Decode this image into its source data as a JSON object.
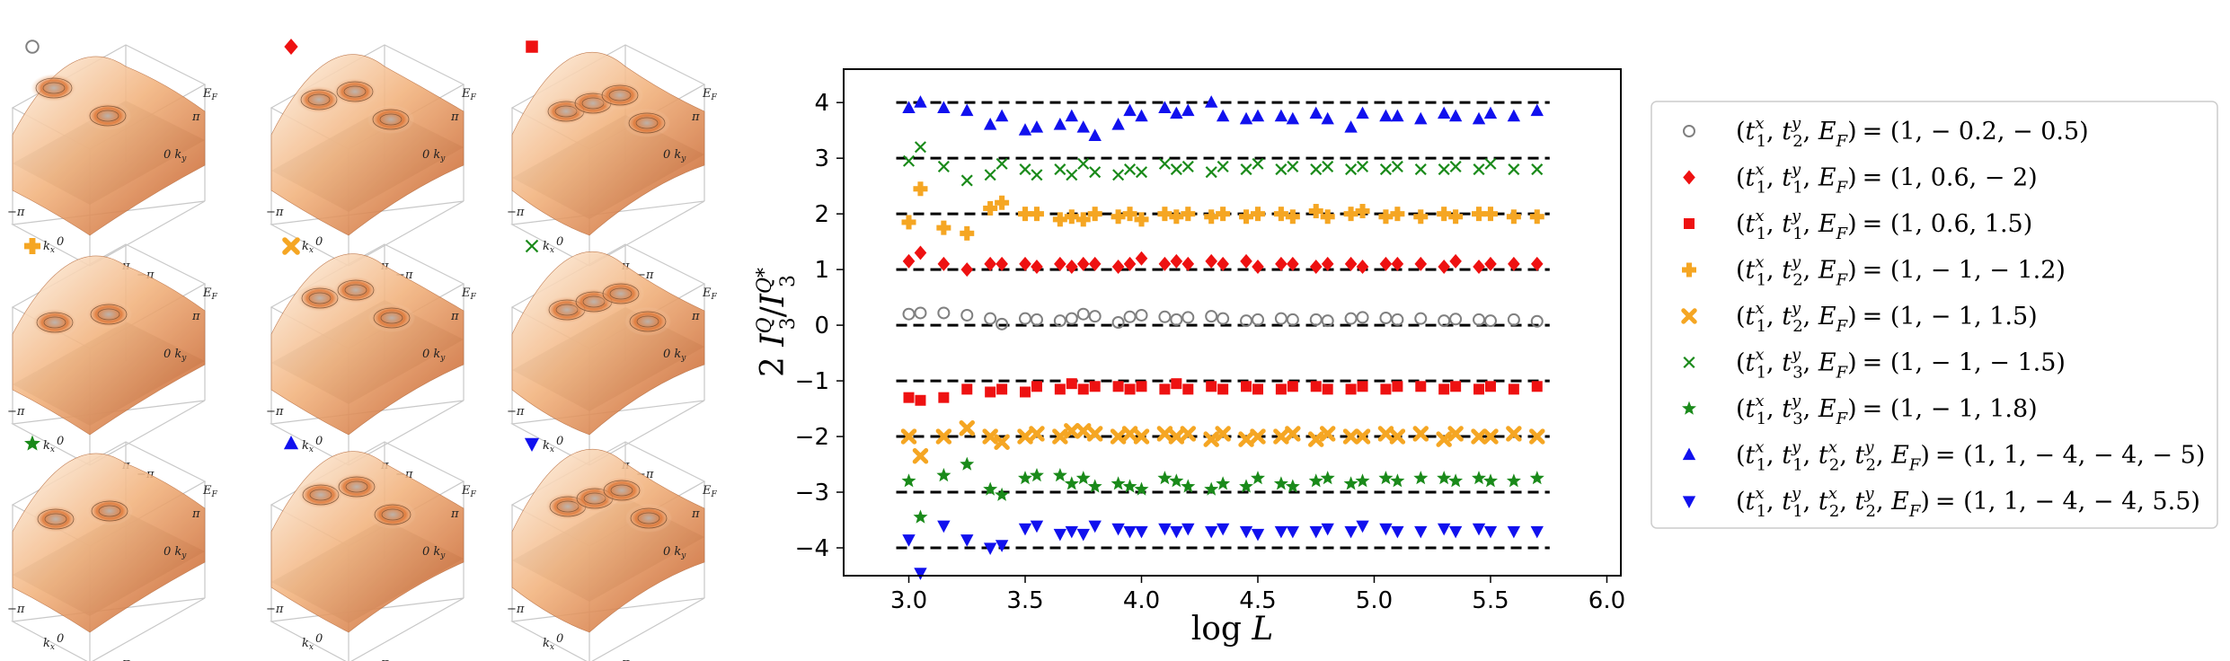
{
  "chart_data": {
    "type": "scatter",
    "xlabel": "log L",
    "ylabel": "2 I3Q / I3Q*",
    "xlim": [
      2.72,
      6.06
    ],
    "ylim": [
      -4.5,
      4.6
    ],
    "xticks": [
      "3.0",
      "3.5",
      "4.0",
      "4.5",
      "5.0",
      "5.5",
      "6.0"
    ],
    "xtick_values": [
      3.0,
      3.5,
      4.0,
      4.5,
      5.0,
      5.5,
      6.0
    ],
    "yticks": [
      "4",
      "3",
      "2",
      "1",
      "0",
      "−1",
      "−2",
      "−3",
      "−4"
    ],
    "ytick_values": [
      4,
      3,
      2,
      1,
      0,
      -1,
      -2,
      -3,
      -4
    ],
    "reference_lines": [
      4,
      3,
      2,
      1,
      0,
      -1,
      -2,
      -3,
      -4
    ],
    "reference_line_xrange": [
      3.0,
      5.7
    ],
    "legend_position": "right",
    "x": [
      3.0,
      3.05,
      3.15,
      3.25,
      3.35,
      3.4,
      3.5,
      3.55,
      3.65,
      3.7,
      3.75,
      3.8,
      3.9,
      3.95,
      4.0,
      4.1,
      4.15,
      4.2,
      4.3,
      4.35,
      4.45,
      4.5,
      4.6,
      4.65,
      4.75,
      4.8,
      4.9,
      4.95,
      5.05,
      5.1,
      5.2,
      5.3,
      5.35,
      5.45,
      5.5,
      5.6,
      5.7
    ],
    "series": [
      {
        "name": "(t1x, t2y, EF) = (1, −0.2, −0.5)",
        "marker": "circle",
        "color": "#808080",
        "values": [
          0.2,
          0.22,
          0.22,
          0.18,
          0.12,
          0.02,
          0.12,
          0.1,
          0.08,
          0.12,
          0.2,
          0.16,
          0.05,
          0.15,
          0.18,
          0.15,
          0.1,
          0.14,
          0.16,
          0.12,
          0.08,
          0.1,
          0.12,
          0.1,
          0.1,
          0.08,
          0.12,
          0.14,
          0.13,
          0.1,
          0.12,
          0.08,
          0.11,
          0.1,
          0.08,
          0.1,
          0.07
        ]
      },
      {
        "name": "(t1x, t1y, EF) = (1, 0.6, −2)",
        "marker": "diamond",
        "color": "#ee1111",
        "values": [
          1.15,
          1.3,
          1.1,
          1.0,
          1.1,
          1.1,
          1.1,
          1.05,
          1.1,
          1.05,
          1.1,
          1.1,
          1.05,
          1.1,
          1.2,
          1.1,
          1.15,
          1.1,
          1.15,
          1.1,
          1.15,
          1.05,
          1.1,
          1.1,
          1.05,
          1.1,
          1.1,
          1.05,
          1.1,
          1.1,
          1.1,
          1.05,
          1.15,
          1.05,
          1.1,
          1.1,
          1.1
        ]
      },
      {
        "name": "(t1x, t1y, EF) = (1, 0.6, 1.5)",
        "marker": "square",
        "color": "#ee1111",
        "values": [
          -1.3,
          -1.35,
          -1.3,
          -1.15,
          -1.2,
          -1.15,
          -1.2,
          -1.1,
          -1.15,
          -1.05,
          -1.15,
          -1.1,
          -1.1,
          -1.15,
          -1.1,
          -1.15,
          -1.05,
          -1.15,
          -1.1,
          -1.15,
          -1.1,
          -1.15,
          -1.15,
          -1.1,
          -1.1,
          -1.15,
          -1.15,
          -1.1,
          -1.15,
          -1.1,
          -1.1,
          -1.15,
          -1.1,
          -1.15,
          -1.1,
          -1.15,
          -1.1
        ]
      },
      {
        "name": "(t1x, t2y, EF) = (1, −1, −1.2)",
        "marker": "plus",
        "color": "#f5a623",
        "values": [
          1.85,
          2.45,
          1.75,
          1.65,
          2.1,
          2.2,
          2.0,
          2.0,
          1.9,
          1.95,
          1.9,
          2.0,
          1.95,
          2.0,
          1.9,
          2.0,
          1.95,
          2.0,
          1.95,
          2.0,
          1.95,
          2.0,
          2.0,
          1.95,
          2.05,
          1.95,
          2.0,
          2.05,
          1.95,
          2.0,
          1.95,
          2.0,
          1.95,
          2.0,
          2.0,
          1.95,
          1.95
        ]
      },
      {
        "name": "(t1x, t2y, EF) = (1, −1, 1.5)",
        "marker": "xthick",
        "color": "#f5a623",
        "values": [
          -2.0,
          -2.35,
          -2.0,
          -1.85,
          -2.0,
          -2.1,
          -2.0,
          -1.95,
          -2.0,
          -1.9,
          -1.9,
          -1.95,
          -2.0,
          -1.95,
          -2.0,
          -1.95,
          -2.0,
          -1.95,
          -2.05,
          -1.95,
          -2.05,
          -2.0,
          -2.0,
          -1.95,
          -2.05,
          -1.95,
          -2.0,
          -2.0,
          -1.95,
          -2.0,
          -1.95,
          -2.05,
          -1.95,
          -2.0,
          -2.0,
          -1.95,
          -2.0
        ]
      },
      {
        "name": "(t1x, t3y, EF) = (1, −1, −1.5)",
        "marker": "x",
        "color": "#1a8a1a",
        "values": [
          2.95,
          3.2,
          2.85,
          2.6,
          2.7,
          2.9,
          2.8,
          2.7,
          2.8,
          2.7,
          2.9,
          2.75,
          2.7,
          2.8,
          2.75,
          2.9,
          2.8,
          2.85,
          2.75,
          2.85,
          2.8,
          2.9,
          2.8,
          2.85,
          2.8,
          2.85,
          2.8,
          2.85,
          2.8,
          2.85,
          2.8,
          2.8,
          2.85,
          2.8,
          2.9,
          2.8,
          2.8
        ]
      },
      {
        "name": "(t1x, t3y, EF) = (1, −1, 1.8)",
        "marker": "star",
        "color": "#1a8a1a",
        "values": [
          -2.8,
          -3.45,
          -2.7,
          -2.5,
          -2.95,
          -3.05,
          -2.75,
          -2.7,
          -2.7,
          -2.85,
          -2.75,
          -2.9,
          -2.85,
          -2.9,
          -2.95,
          -2.75,
          -2.8,
          -2.9,
          -2.95,
          -2.85,
          -2.9,
          -2.75,
          -2.85,
          -2.9,
          -2.8,
          -2.75,
          -2.85,
          -2.8,
          -2.75,
          -2.8,
          -2.75,
          -2.75,
          -2.8,
          -2.75,
          -2.8,
          -2.8,
          -2.75
        ]
      },
      {
        "name": "(t1x, t1y, t2x, t2y, EF) = (1, 1, −4, −4, −5)",
        "marker": "triangle-up",
        "color": "#1111ee",
        "values": [
          3.9,
          4.0,
          3.9,
          3.85,
          3.6,
          3.75,
          3.5,
          3.55,
          3.6,
          3.75,
          3.55,
          3.4,
          3.6,
          3.85,
          3.75,
          3.9,
          3.8,
          3.85,
          4.0,
          3.75,
          3.7,
          3.75,
          3.75,
          3.7,
          3.8,
          3.7,
          3.55,
          3.8,
          3.75,
          3.75,
          3.7,
          3.8,
          3.75,
          3.7,
          3.8,
          3.75,
          3.85
        ]
      },
      {
        "name": "(t1x, t1y, t2x, t2y, EF) = (1, 1, −4, −4, 5.5)",
        "marker": "triangle-down",
        "color": "#1111ee",
        "values": [
          -3.85,
          -4.45,
          -3.6,
          -3.85,
          -4.0,
          -3.95,
          -3.65,
          -3.6,
          -3.75,
          -3.7,
          -3.75,
          -3.6,
          -3.65,
          -3.7,
          -3.7,
          -3.65,
          -3.7,
          -3.65,
          -3.7,
          -3.65,
          -3.7,
          -3.75,
          -3.7,
          -3.7,
          -3.7,
          -3.65,
          -3.7,
          -3.6,
          -3.65,
          -3.7,
          -3.7,
          -3.65,
          -3.7,
          -3.65,
          -3.7,
          -3.7,
          -3.7
        ]
      }
    ],
    "legend": [
      {
        "prefix": "(",
        "sym": [
          "t",
          "t",
          "E"
        ],
        "sup": [
          "x",
          "y",
          ""
        ],
        "sub": [
          "1",
          "2",
          "F"
        ],
        "values": "= (1, − 0.2, − 0.5)",
        "marker": "circle",
        "color": "#808080"
      },
      {
        "sym": [
          "t",
          "t",
          "E"
        ],
        "sup": [
          "x",
          "y",
          ""
        ],
        "sub": [
          "1",
          "1",
          "F"
        ],
        "values": "= (1, 0.6, − 2)",
        "marker": "diamond",
        "color": "#ee1111"
      },
      {
        "sym": [
          "t",
          "t",
          "E"
        ],
        "sup": [
          "x",
          "y",
          ""
        ],
        "sub": [
          "1",
          "1",
          "F"
        ],
        "values": "= (1, 0.6, 1.5)",
        "marker": "square",
        "color": "#ee1111"
      },
      {
        "sym": [
          "t",
          "t",
          "E"
        ],
        "sup": [
          "x",
          "y",
          ""
        ],
        "sub": [
          "1",
          "2",
          "F"
        ],
        "values": "= (1, − 1, − 1.2)",
        "marker": "plus",
        "color": "#f5a623"
      },
      {
        "sym": [
          "t",
          "t",
          "E"
        ],
        "sup": [
          "x",
          "y",
          ""
        ],
        "sub": [
          "1",
          "2",
          "F"
        ],
        "values": "= (1, − 1, 1.5)",
        "marker": "xthick",
        "color": "#f5a623"
      },
      {
        "sym": [
          "t",
          "t",
          "E"
        ],
        "sup": [
          "x",
          "y",
          ""
        ],
        "sub": [
          "1",
          "3",
          "F"
        ],
        "values": "= (1, − 1, − 1.5)",
        "marker": "x",
        "color": "#1a8a1a"
      },
      {
        "sym": [
          "t",
          "t",
          "E"
        ],
        "sup": [
          "x",
          "y",
          ""
        ],
        "sub": [
          "1",
          "3",
          "F"
        ],
        "values": "= (1, − 1, 1.8)",
        "marker": "star",
        "color": "#1a8a1a"
      },
      {
        "sym": [
          "t",
          "t",
          "t",
          "t",
          "E"
        ],
        "sup": [
          "x",
          "y",
          "x",
          "y",
          ""
        ],
        "sub": [
          "1",
          "1",
          "2",
          "2",
          "F"
        ],
        "values": "= (1, 1, − 4, − 4, − 5)",
        "marker": "triangle-up",
        "color": "#1111ee"
      },
      {
        "sym": [
          "t",
          "t",
          "t",
          "t",
          "E"
        ],
        "sup": [
          "x",
          "y",
          "x",
          "y",
          ""
        ],
        "sub": [
          "1",
          "1",
          "2",
          "2",
          "F"
        ],
        "values": "= (1, 1, − 4, − 4, 5.5)",
        "marker": "triangle-down",
        "color": "#1111ee"
      }
    ]
  },
  "surfaces": [
    {
      "marker": "circle",
      "color": "#808080"
    },
    {
      "marker": "diamond",
      "color": "#ee1111"
    },
    {
      "marker": "square",
      "color": "#ee1111"
    },
    {
      "marker": "plus",
      "color": "#f5a623"
    },
    {
      "marker": "xthick",
      "color": "#f5a623"
    },
    {
      "marker": "x",
      "color": "#1a8a1a"
    },
    {
      "marker": "star",
      "color": "#1a8a1a"
    },
    {
      "marker": "triangle-up",
      "color": "#1111ee"
    },
    {
      "marker": "triangle-down",
      "color": "#1111ee"
    }
  ],
  "surface_axes": {
    "kx_label": "k",
    "kx_sub": "x",
    "ky_label": "k",
    "ky_sub": "y",
    "ef_label": "E",
    "ef_sub": "F",
    "tick_neg_pi": "−π",
    "tick_zero": "0",
    "tick_pi": "π"
  }
}
